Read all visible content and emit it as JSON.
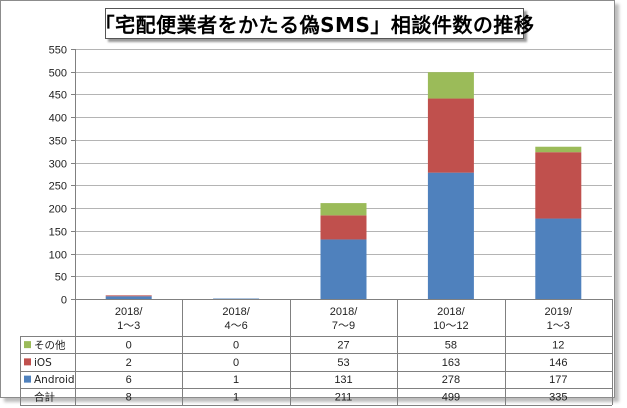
{
  "chart_data": {
    "type": "bar",
    "stacked": true,
    "title": "「宅配便業者をかたる偽SMS」相談件数の推移",
    "categories": [
      [
        "2018/",
        "1～3"
      ],
      [
        "2018/",
        "4～6"
      ],
      [
        "2018/",
        "7～9"
      ],
      [
        "2018/",
        "10～12"
      ],
      [
        "2019/",
        "1～3"
      ]
    ],
    "series": [
      {
        "name": "Android",
        "color": "#4f81bd",
        "values": [
          6,
          1,
          131,
          278,
          177
        ]
      },
      {
        "name": "iOS",
        "color": "#c0504d",
        "values": [
          2,
          0,
          53,
          163,
          146
        ]
      },
      {
        "name": "その他",
        "color": "#9bbb59",
        "values": [
          0,
          0,
          27,
          58,
          12
        ]
      }
    ],
    "total": {
      "name": "合計",
      "values": [
        8,
        1,
        211,
        499,
        335
      ]
    },
    "table_row_order": [
      "その他",
      "iOS",
      "Android",
      "合計"
    ],
    "ylim": [
      0,
      550
    ],
    "yticks": [
      0,
      50,
      100,
      150,
      200,
      250,
      300,
      350,
      400,
      450,
      500,
      550
    ],
    "grid": true,
    "legend": "data-table"
  }
}
